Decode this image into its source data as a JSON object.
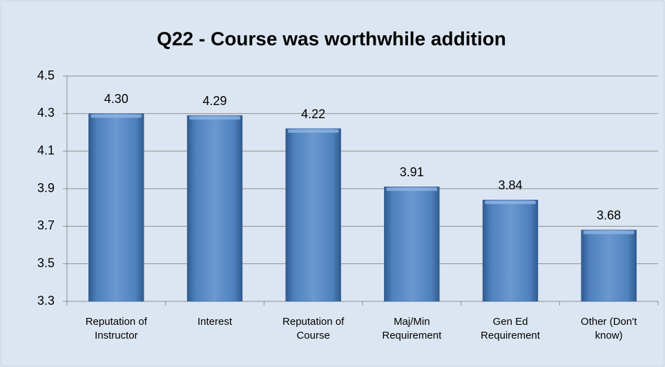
{
  "chart_data": {
    "type": "bar",
    "title": "Q22 - Course was worthwhile addition",
    "categories": [
      "Reputation of Instructor",
      "Interest",
      "Reputation of Course",
      "Maj/Min Requirement",
      "Gen Ed Requirement",
      "Other (Don't know)"
    ],
    "values": [
      4.3,
      4.29,
      4.22,
      3.91,
      3.84,
      3.68
    ],
    "value_labels": [
      "4.30",
      "4.29",
      "4.22",
      "3.91",
      "3.84",
      "3.68"
    ],
    "color": "#4f81bd",
    "ylim": [
      3.3,
      4.5
    ],
    "yticks": [
      3.3,
      3.5,
      3.7,
      3.9,
      4.1,
      4.3,
      4.5
    ],
    "grid": true
  }
}
